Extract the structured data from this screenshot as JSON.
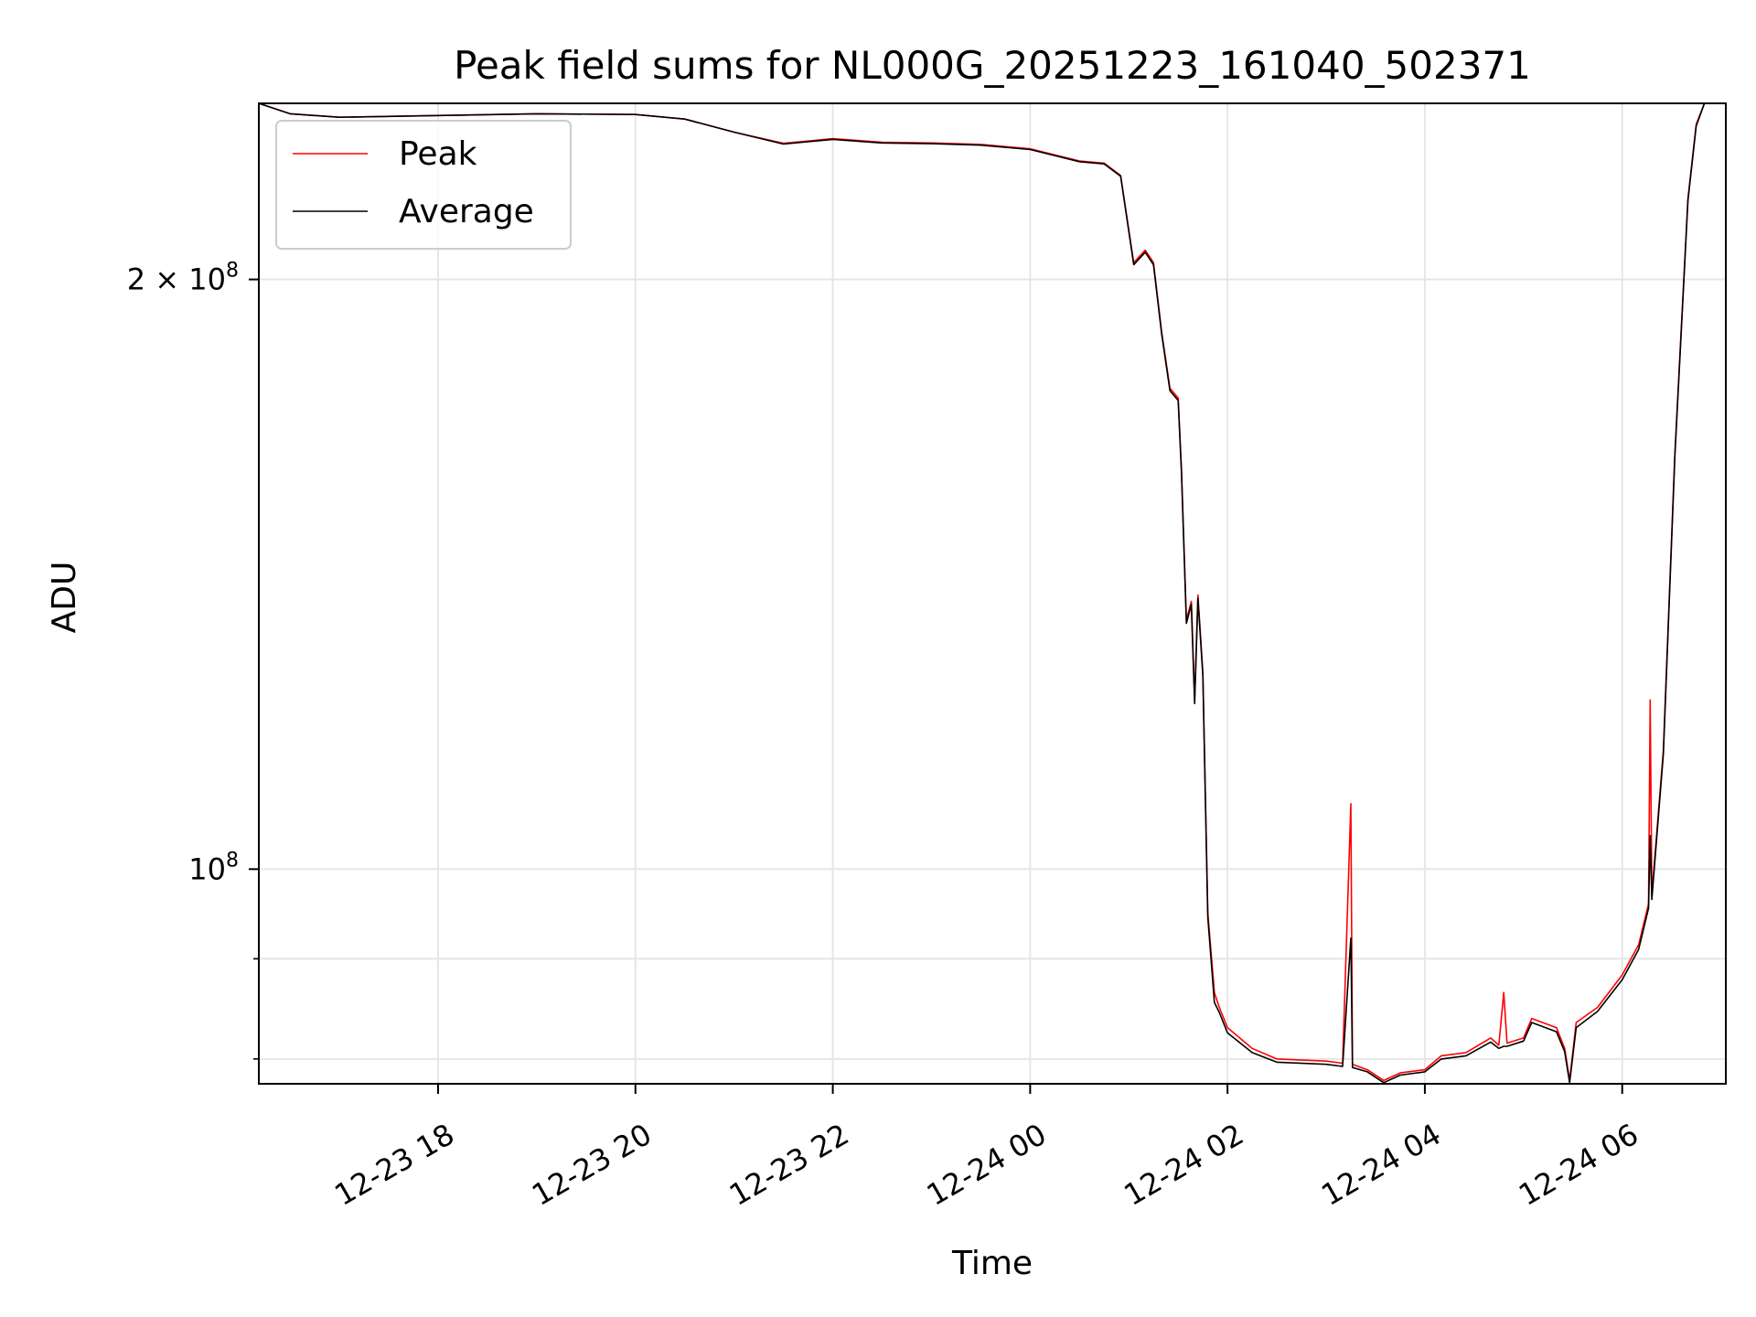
{
  "chart_data": {
    "type": "line",
    "title": "Peak field sums for NL000G_20251223_161040_502371",
    "xlabel": "Time",
    "ylabel": "ADU",
    "yscale": "log",
    "grid": true,
    "legend_position": "upper left",
    "xlim": [
      "2025-12-23 16:11",
      "2025-12-24 07:03"
    ],
    "ylim": [
      77700000,
      246000000
    ],
    "x_ticks": [
      {
        "value": "2025-12-23 18:00",
        "label": "12-23 18"
      },
      {
        "value": "2025-12-23 20:00",
        "label": "12-23 20"
      },
      {
        "value": "2025-12-23 22:00",
        "label": "12-23 22"
      },
      {
        "value": "2025-12-24 00:00",
        "label": "12-24 00"
      },
      {
        "value": "2025-12-24 02:00",
        "label": "12-24 02"
      },
      {
        "value": "2025-12-24 04:00",
        "label": "12-24 04"
      },
      {
        "value": "2025-12-24 06:00",
        "label": "12-24 06"
      }
    ],
    "y_ticks_major": [
      {
        "value": 100000000,
        "label_base": "10",
        "label_exp": "8",
        "label_coef": ""
      },
      {
        "value": 200000000,
        "label_base": "10",
        "label_exp": "8",
        "label_coef": "2 × "
      }
    ],
    "y_ticks_minor": [
      80000000,
      90000000
    ],
    "series": [
      {
        "name": "Peak",
        "color": "#ff0000",
        "points": [
          [
            "2025-12-23 16:11",
            246000000
          ],
          [
            "2025-12-23 16:30",
            243000000
          ],
          [
            "2025-12-23 17:00",
            242000000
          ],
          [
            "2025-12-23 18:00",
            242500000
          ],
          [
            "2025-12-23 19:00",
            243000000
          ],
          [
            "2025-12-23 20:00",
            242800000
          ],
          [
            "2025-12-23 20:30",
            241500000
          ],
          [
            "2025-12-23 21:00",
            237800000
          ],
          [
            "2025-12-23 21:30",
            234700000
          ],
          [
            "2025-12-23 22:00",
            236000000
          ],
          [
            "2025-12-23 22:30",
            235000000
          ],
          [
            "2025-12-23 23:00",
            234800000
          ],
          [
            "2025-12-23 23:30",
            234400000
          ],
          [
            "2025-12-24 00:00",
            233200000
          ],
          [
            "2025-12-24 00:30",
            229900000
          ],
          [
            "2025-12-24 00:45",
            229300000
          ],
          [
            "2025-12-24 00:55",
            226000000
          ],
          [
            "2025-12-24 01:03",
            204000000
          ],
          [
            "2025-12-24 01:10",
            207000000
          ],
          [
            "2025-12-24 01:15",
            204000000
          ],
          [
            "2025-12-24 01:20",
            188000000
          ],
          [
            "2025-12-24 01:25",
            176000000
          ],
          [
            "2025-12-24 01:30",
            174000000
          ],
          [
            "2025-12-24 01:32",
            160000000
          ],
          [
            "2025-12-24 01:35",
            134000000
          ],
          [
            "2025-12-24 01:38",
            137000000
          ],
          [
            "2025-12-24 01:40",
            122000000
          ],
          [
            "2025-12-24 01:42",
            138000000
          ],
          [
            "2025-12-24 01:45",
            126000000
          ],
          [
            "2025-12-24 01:48",
            95000000
          ],
          [
            "2025-12-24 01:52",
            86500000
          ],
          [
            "2025-12-24 01:55",
            85000000
          ],
          [
            "2025-12-24 02:00",
            83000000
          ],
          [
            "2025-12-24 02:15",
            81000000
          ],
          [
            "2025-12-24 02:30",
            80000000
          ],
          [
            "2025-12-24 03:00",
            79800000
          ],
          [
            "2025-12-24 03:10",
            79600000
          ],
          [
            "2025-12-24 03:15",
            108000000
          ],
          [
            "2025-12-24 03:16",
            79500000
          ],
          [
            "2025-12-24 03:25",
            79000000
          ],
          [
            "2025-12-24 03:35",
            78000000
          ],
          [
            "2025-12-24 03:45",
            78700000
          ],
          [
            "2025-12-24 04:00",
            79000000
          ],
          [
            "2025-12-24 04:10",
            80300000
          ],
          [
            "2025-12-24 04:25",
            80600000
          ],
          [
            "2025-12-24 04:40",
            82000000
          ],
          [
            "2025-12-24 04:45",
            81300000
          ],
          [
            "2025-12-24 04:48",
            86500000
          ],
          [
            "2025-12-24 04:50",
            81500000
          ],
          [
            "2025-12-24 05:00",
            82000000
          ],
          [
            "2025-12-24 05:05",
            83900000
          ],
          [
            "2025-12-24 05:20",
            83000000
          ],
          [
            "2025-12-24 05:25",
            81000000
          ],
          [
            "2025-12-24 05:28",
            78000000
          ],
          [
            "2025-12-24 05:32",
            83500000
          ],
          [
            "2025-12-24 05:45",
            85000000
          ],
          [
            "2025-12-24 06:00",
            88300000
          ],
          [
            "2025-12-24 06:10",
            91500000
          ],
          [
            "2025-12-24 06:16",
            96000000
          ],
          [
            "2025-12-24 06:17",
            122000000
          ],
          [
            "2025-12-24 06:18",
            97000000
          ],
          [
            "2025-12-24 06:25",
            115000000
          ],
          [
            "2025-12-24 06:32",
            163000000
          ],
          [
            "2025-12-24 06:40",
            220000000
          ],
          [
            "2025-12-24 06:45",
            240000000
          ],
          [
            "2025-12-24 06:50",
            246000000
          ],
          [
            "2025-12-24 07:03",
            246000000
          ]
        ]
      },
      {
        "name": "Average",
        "color": "#000000",
        "points": [
          [
            "2025-12-23 16:11",
            246000000
          ],
          [
            "2025-12-23 16:30",
            243000000
          ],
          [
            "2025-12-23 17:00",
            242000000
          ],
          [
            "2025-12-23 18:00",
            242500000
          ],
          [
            "2025-12-23 19:00",
            243000000
          ],
          [
            "2025-12-23 20:00",
            242800000
          ],
          [
            "2025-12-23 20:30",
            241500000
          ],
          [
            "2025-12-23 21:00",
            237800000
          ],
          [
            "2025-12-23 21:30",
            234500000
          ],
          [
            "2025-12-23 22:00",
            235800000
          ],
          [
            "2025-12-23 22:30",
            234800000
          ],
          [
            "2025-12-23 23:00",
            234600000
          ],
          [
            "2025-12-23 23:30",
            234200000
          ],
          [
            "2025-12-24 00:00",
            233000000
          ],
          [
            "2025-12-24 00:30",
            229700000
          ],
          [
            "2025-12-24 00:45",
            229100000
          ],
          [
            "2025-12-24 00:55",
            225800000
          ],
          [
            "2025-12-24 01:03",
            203500000
          ],
          [
            "2025-12-24 01:10",
            206500000
          ],
          [
            "2025-12-24 01:15",
            203500000
          ],
          [
            "2025-12-24 01:20",
            187500000
          ],
          [
            "2025-12-24 01:25",
            175500000
          ],
          [
            "2025-12-24 01:30",
            173500000
          ],
          [
            "2025-12-24 01:32",
            159500000
          ],
          [
            "2025-12-24 01:35",
            133500000
          ],
          [
            "2025-12-24 01:38",
            136500000
          ],
          [
            "2025-12-24 01:40",
            121500000
          ],
          [
            "2025-12-24 01:42",
            137500000
          ],
          [
            "2025-12-24 01:45",
            125500000
          ],
          [
            "2025-12-24 01:48",
            94500000
          ],
          [
            "2025-12-24 01:52",
            85500000
          ],
          [
            "2025-12-24 01:55",
            84500000
          ],
          [
            "2025-12-24 02:00",
            82500000
          ],
          [
            "2025-12-24 02:15",
            80600000
          ],
          [
            "2025-12-24 02:30",
            79700000
          ],
          [
            "2025-12-24 03:00",
            79500000
          ],
          [
            "2025-12-24 03:10",
            79300000
          ],
          [
            "2025-12-24 03:15",
            92200000
          ],
          [
            "2025-12-24 03:16",
            79200000
          ],
          [
            "2025-12-24 03:25",
            78800000
          ],
          [
            "2025-12-24 03:35",
            77800000
          ],
          [
            "2025-12-24 03:45",
            78500000
          ],
          [
            "2025-12-24 04:00",
            78800000
          ],
          [
            "2025-12-24 04:10",
            80000000
          ],
          [
            "2025-12-24 04:25",
            80300000
          ],
          [
            "2025-12-24 04:40",
            81600000
          ],
          [
            "2025-12-24 04:45",
            81000000
          ],
          [
            "2025-12-24 04:48",
            81200000
          ],
          [
            "2025-12-24 04:50",
            81200000
          ],
          [
            "2025-12-24 05:00",
            81700000
          ],
          [
            "2025-12-24 05:05",
            83500000
          ],
          [
            "2025-12-24 05:20",
            82600000
          ],
          [
            "2025-12-24 05:25",
            80700000
          ],
          [
            "2025-12-24 05:28",
            77800000
          ],
          [
            "2025-12-24 05:32",
            83000000
          ],
          [
            "2025-12-24 05:45",
            84600000
          ],
          [
            "2025-12-24 06:00",
            87800000
          ],
          [
            "2025-12-24 06:10",
            91000000
          ],
          [
            "2025-12-24 06:16",
            95500000
          ],
          [
            "2025-12-24 06:17",
            104000000
          ],
          [
            "2025-12-24 06:18",
            96500000
          ],
          [
            "2025-12-24 06:25",
            114500000
          ],
          [
            "2025-12-24 06:32",
            162500000
          ],
          [
            "2025-12-24 06:40",
            219500000
          ],
          [
            "2025-12-24 06:45",
            239500000
          ],
          [
            "2025-12-24 06:50",
            246000000
          ],
          [
            "2025-12-24 07:03",
            246000000
          ]
        ]
      }
    ]
  }
}
